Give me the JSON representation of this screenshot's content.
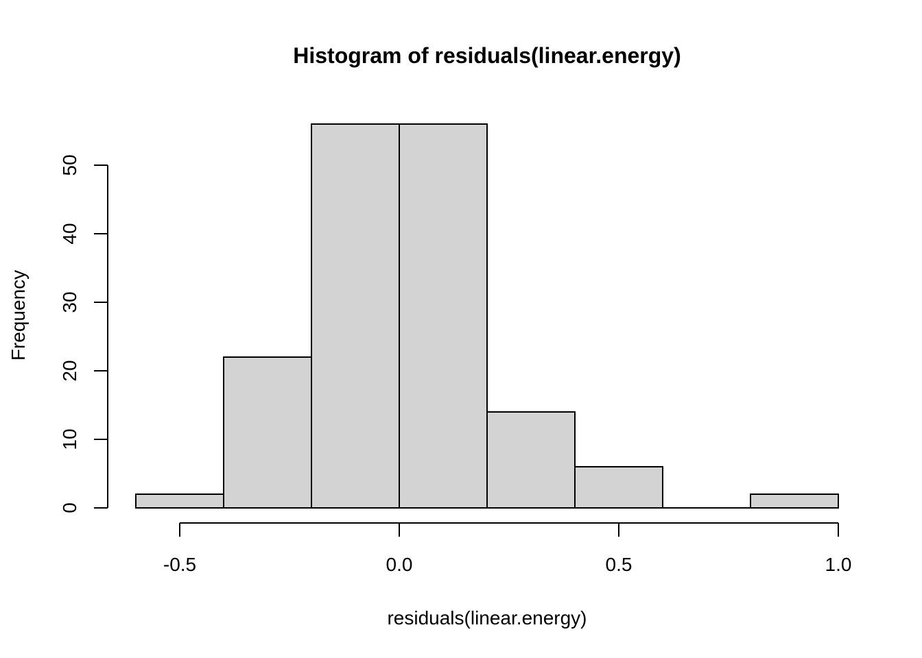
{
  "chart_data": {
    "type": "bar",
    "title": "Histogram of residuals(linear.energy)",
    "xlabel": "residuals(linear.energy)",
    "ylabel": "Frequency",
    "bins": [
      {
        "start": -0.6,
        "end": -0.4,
        "count": 2
      },
      {
        "start": -0.4,
        "end": -0.2,
        "count": 22
      },
      {
        "start": -0.2,
        "end": 0.0,
        "count": 56
      },
      {
        "start": 0.0,
        "end": 0.2,
        "count": 56
      },
      {
        "start": 0.2,
        "end": 0.4,
        "count": 14
      },
      {
        "start": 0.4,
        "end": 0.6,
        "count": 6
      },
      {
        "start": 0.6,
        "end": 0.8,
        "count": 0
      },
      {
        "start": 0.8,
        "end": 1.0,
        "count": 2
      }
    ],
    "x_ticks": [
      {
        "value": -0.5,
        "label": "-0.5"
      },
      {
        "value": 0.0,
        "label": "0.0"
      },
      {
        "value": 0.5,
        "label": "0.5"
      },
      {
        "value": 1.0,
        "label": "1.0"
      }
    ],
    "y_ticks": [
      {
        "value": 0,
        "label": "0"
      },
      {
        "value": 10,
        "label": "10"
      },
      {
        "value": 20,
        "label": "20"
      },
      {
        "value": 30,
        "label": "30"
      },
      {
        "value": 40,
        "label": "40"
      },
      {
        "value": 50,
        "label": "50"
      }
    ],
    "bar_color": "#d3d3d3",
    "grid": false
  }
}
